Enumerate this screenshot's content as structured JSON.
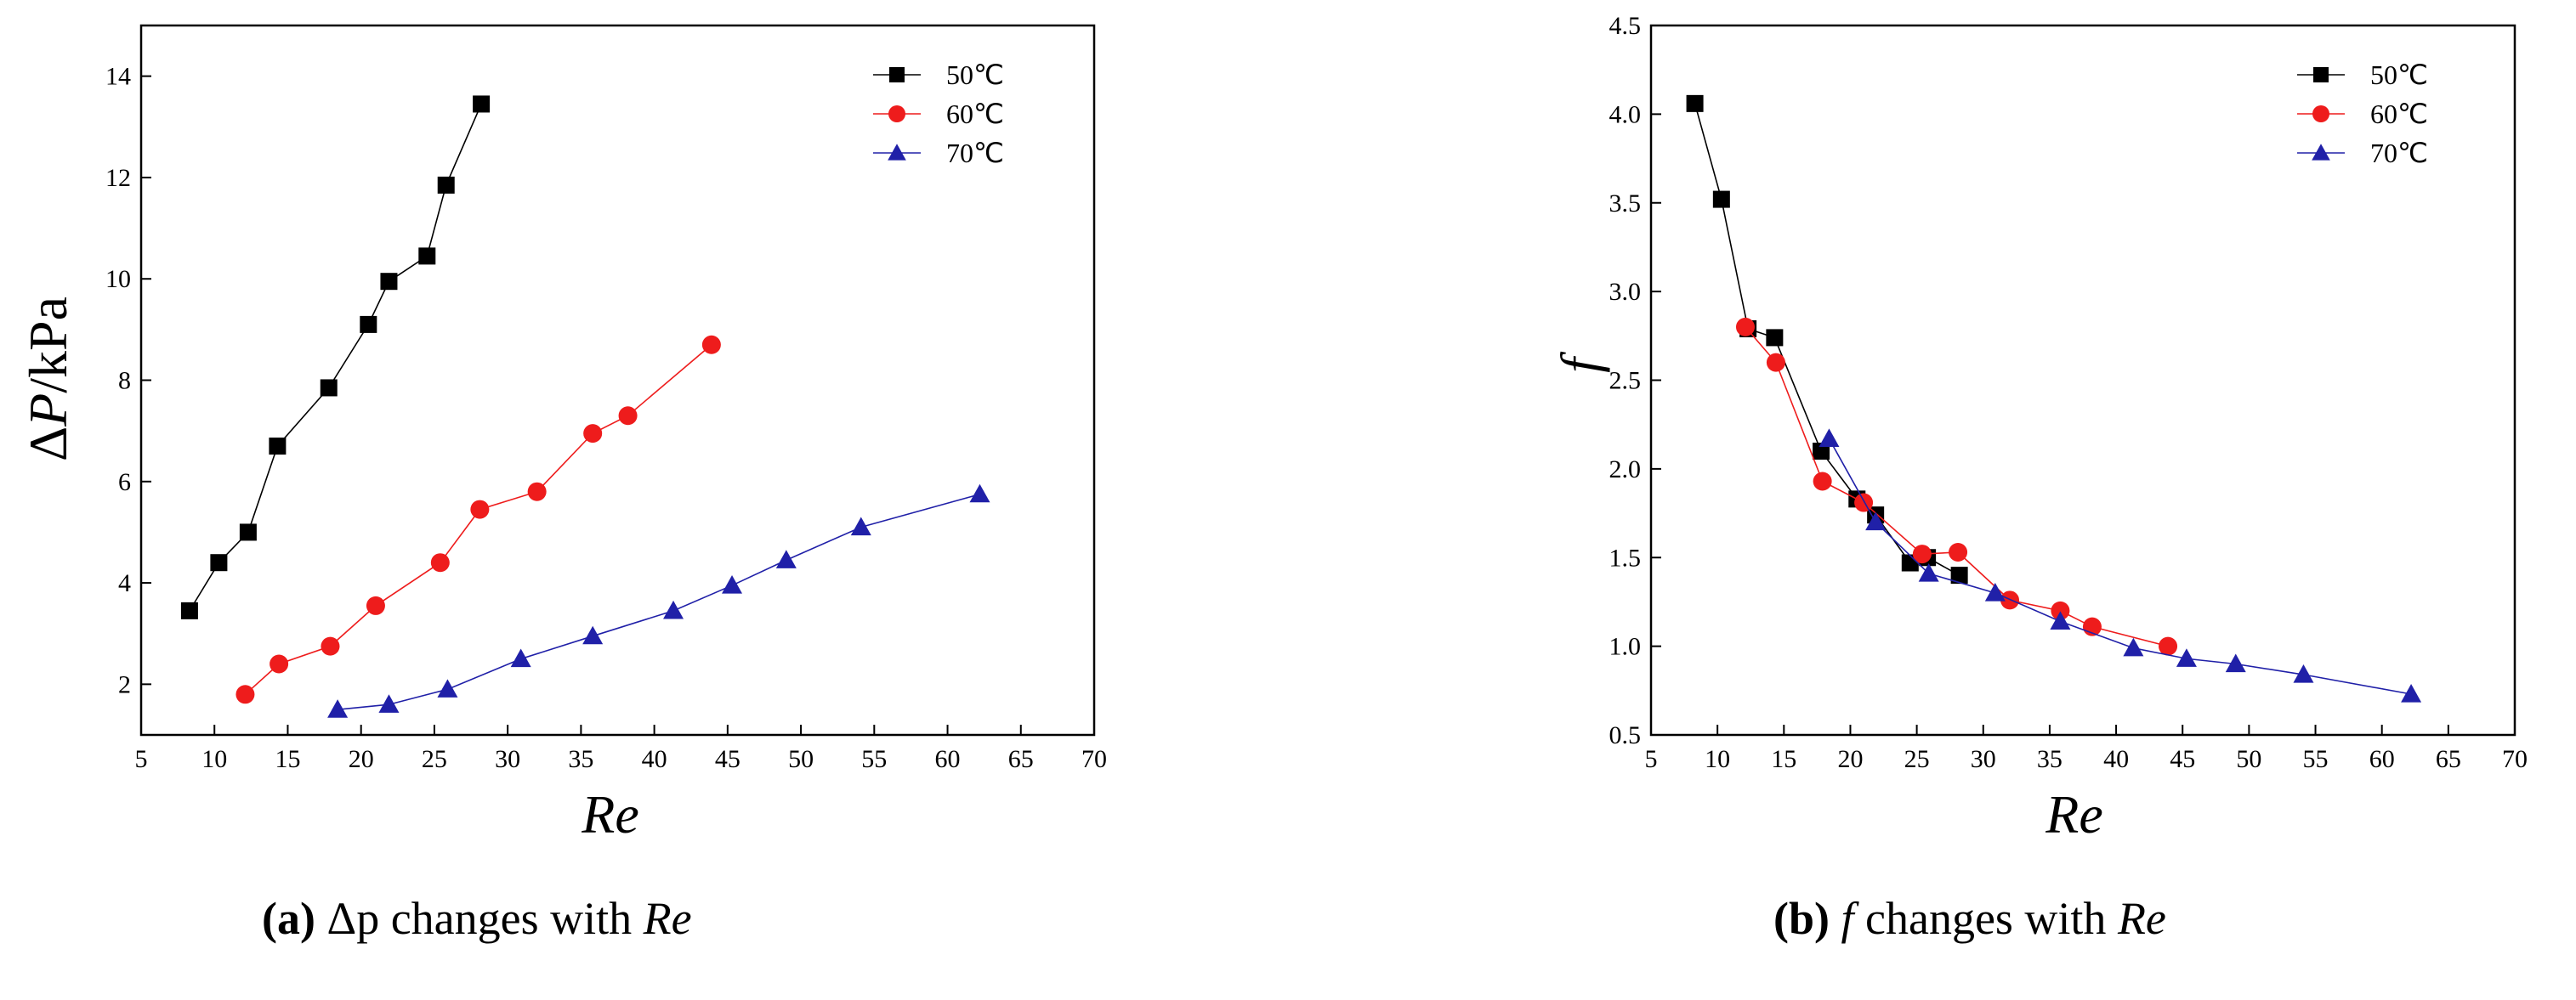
{
  "chart_data": [
    {
      "type": "line",
      "panel": "a",
      "title": "",
      "xlabel": "Re",
      "ylabel": "ΔP/kPa",
      "xlim": [
        5,
        70
      ],
      "ylim": [
        1,
        15
      ],
      "xticks": [
        5,
        10,
        15,
        20,
        25,
        30,
        35,
        40,
        45,
        50,
        55,
        60,
        65,
        70
      ],
      "yticks": [
        2,
        4,
        6,
        8,
        10,
        12,
        14
      ],
      "legend_position": "top-right",
      "series": [
        {
          "name": "50℃",
          "color": "#000000",
          "marker": "square",
          "x": [
            8.3,
            10.3,
            12.3,
            14.3,
            17.8,
            20.5,
            21.9,
            24.5,
            25.8,
            28.2
          ],
          "y": [
            3.45,
            4.4,
            5.0,
            6.7,
            7.85,
            9.1,
            9.95,
            10.45,
            11.85,
            13.45
          ]
        },
        {
          "name": "60℃",
          "color": "#ee1c1c",
          "marker": "circle",
          "x": [
            12.1,
            14.4,
            17.9,
            21.0,
            25.4,
            28.1,
            32.0,
            35.8,
            38.2,
            43.9
          ],
          "y": [
            1.8,
            2.4,
            2.75,
            3.55,
            4.4,
            5.45,
            5.8,
            6.95,
            7.3,
            8.7
          ]
        },
        {
          "name": "70℃",
          "color": "#2020a8",
          "marker": "triangle",
          "x": [
            18.4,
            21.9,
            25.9,
            30.9,
            35.8,
            41.3,
            45.3,
            49.0,
            54.1,
            62.2
          ],
          "y": [
            1.5,
            1.6,
            1.9,
            2.5,
            2.95,
            3.45,
            3.95,
            4.45,
            5.1,
            5.75
          ]
        }
      ]
    },
    {
      "type": "line",
      "panel": "b",
      "title": "",
      "xlabel": "Re",
      "ylabel": "f",
      "xlim": [
        5,
        70
      ],
      "ylim": [
        0.5,
        4.5
      ],
      "xticks": [
        5,
        10,
        15,
        20,
        25,
        30,
        35,
        40,
        45,
        50,
        55,
        60,
        65,
        70
      ],
      "yticks": [
        0.5,
        1.0,
        1.5,
        2.0,
        2.5,
        3.0,
        3.5,
        4.0,
        4.5
      ],
      "legend_position": "top-right",
      "series": [
        {
          "name": "50℃",
          "color": "#000000",
          "marker": "square",
          "x": [
            8.3,
            10.3,
            12.3,
            14.3,
            17.8,
            20.5,
            21.9,
            24.5,
            25.8,
            28.2
          ],
          "y": [
            4.06,
            3.52,
            2.79,
            2.74,
            2.1,
            1.83,
            1.74,
            1.47,
            1.5,
            1.4
          ]
        },
        {
          "name": "60℃",
          "color": "#ee1c1c",
          "marker": "circle",
          "x": [
            12.1,
            14.4,
            17.9,
            21.0,
            25.4,
            28.1,
            32.0,
            35.8,
            38.2,
            43.9
          ],
          "y": [
            2.8,
            2.6,
            1.93,
            1.81,
            1.52,
            1.53,
            1.26,
            1.2,
            1.11,
            1.0
          ]
        },
        {
          "name": "70℃",
          "color": "#2020a8",
          "marker": "triangle",
          "x": [
            18.4,
            21.9,
            25.9,
            30.9,
            35.8,
            41.3,
            45.3,
            49.0,
            54.1,
            62.2
          ],
          "y": [
            2.17,
            1.7,
            1.41,
            1.3,
            1.14,
            0.99,
            0.93,
            0.9,
            0.84,
            0.73
          ]
        }
      ]
    }
  ],
  "captions": {
    "a": {
      "label": "(a)",
      "symbol": "Δp",
      "text": "changes with",
      "re": "Re"
    },
    "b": {
      "label": "(b)",
      "symbol": "f",
      "text": "changes with",
      "re": "Re"
    }
  }
}
